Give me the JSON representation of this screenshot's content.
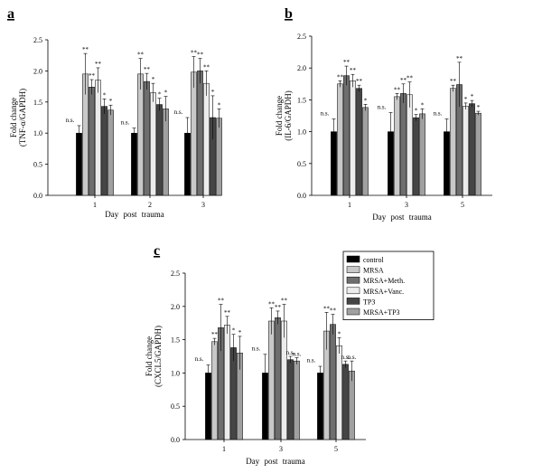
{
  "legend": {
    "series_names": [
      "control",
      "MRSA",
      "MRSA+Meth.",
      "MRSA+Vanc.",
      "TP3",
      "MRSA+TP3"
    ],
    "series_colors": [
      "#000000",
      "#c8c8c8",
      "#6e6e6e",
      "#ececec",
      "#454545",
      "#a0a0a0"
    ]
  },
  "chart_data": [
    {
      "panel": "a",
      "type": "bar",
      "xlabel": "Day post trauma",
      "ylabel": "Fold change (TNF-α/GAPDH)",
      "ylim": [
        0,
        2.5
      ],
      "yticks": [
        "0.0",
        "0.5",
        "1.0",
        "1.5",
        "2.0",
        "2.5"
      ],
      "categories": [
        "1",
        "2",
        "3"
      ],
      "series": [
        {
          "name": "control",
          "values": [
            1.0,
            1.0,
            1.0
          ],
          "errors": [
            0.12,
            0.08,
            0.25
          ]
        },
        {
          "name": "MRSA",
          "values": [
            1.95,
            1.95,
            1.98
          ],
          "errors": [
            0.33,
            0.25,
            0.25
          ]
        },
        {
          "name": "MRSA+Meth.",
          "values": [
            1.74,
            1.83,
            2.0
          ],
          "errors": [
            0.12,
            0.13,
            0.2
          ]
        },
        {
          "name": "MRSA+Vanc.",
          "values": [
            1.85,
            1.65,
            1.8
          ],
          "errors": [
            0.2,
            0.15,
            0.2
          ]
        },
        {
          "name": "TP3",
          "values": [
            1.43,
            1.46,
            1.25
          ],
          "errors": [
            0.12,
            0.1,
            0.35
          ]
        },
        {
          "name": "MRSA+TP3",
          "values": [
            1.37,
            1.39,
            1.24
          ],
          "errors": [
            0.08,
            0.2,
            0.15
          ]
        }
      ],
      "annotations": [
        [
          "n.s.",
          "**",
          "**",
          "**",
          "*",
          "*"
        ],
        [
          "n.s.",
          "**",
          "**",
          "*",
          "*",
          "*"
        ],
        [
          "n.s.",
          "**",
          "**",
          "**",
          "*",
          "*"
        ]
      ]
    },
    {
      "panel": "b",
      "type": "bar",
      "xlabel": "Day post trauma",
      "ylabel": "Fold change (IL-6/GAPDH)",
      "ylim": [
        0,
        2.5
      ],
      "yticks": [
        "0.0",
        "0.5",
        "1.0",
        "1.5",
        "2.0",
        "2.5"
      ],
      "categories": [
        "1",
        "3",
        "5"
      ],
      "series": [
        {
          "name": "control",
          "values": [
            1.0,
            1.0,
            1.0
          ],
          "errors": [
            0.2,
            0.3,
            0.2
          ]
        },
        {
          "name": "MRSA",
          "values": [
            1.75,
            1.55,
            1.68
          ],
          "errors": [
            0.05,
            0.05,
            0.05
          ]
        },
        {
          "name": "MRSA+Meth.",
          "values": [
            1.88,
            1.6,
            1.74
          ],
          "errors": [
            0.15,
            0.15,
            0.35
          ]
        },
        {
          "name": "MRSA+Vanc.",
          "values": [
            1.8,
            1.58,
            1.4
          ],
          "errors": [
            0.1,
            0.2,
            0.05
          ]
        },
        {
          "name": "TP3",
          "values": [
            1.68,
            1.22,
            1.44
          ],
          "errors": [
            0.05,
            0.05,
            0.05
          ]
        },
        {
          "name": "MRSA+TP3",
          "values": [
            1.38,
            1.28,
            1.29
          ],
          "errors": [
            0.05,
            0.08,
            0.03
          ]
        }
      ],
      "annotations": [
        [
          "n.s.",
          "**",
          "**",
          "**",
          "**",
          "*"
        ],
        [
          "n.s.",
          "**",
          "**",
          "**",
          "*",
          "*"
        ],
        [
          "n.s.",
          "**",
          "**",
          "*",
          "*",
          "*"
        ]
      ]
    },
    {
      "panel": "c",
      "type": "bar",
      "xlabel": "Day post trauma",
      "ylabel": "Fold change (CXCL5/GAPDH)",
      "ylim": [
        0,
        2.5
      ],
      "yticks": [
        "0.0",
        "0.5",
        "1.0",
        "1.5",
        "2.0",
        "2.5"
      ],
      "categories": [
        "1",
        "3",
        "5"
      ],
      "series": [
        {
          "name": "control",
          "values": [
            1.0,
            1.0,
            1.0
          ],
          "errors": [
            0.12,
            0.28,
            0.1
          ]
        },
        {
          "name": "MRSA",
          "values": [
            1.47,
            1.78,
            1.63
          ],
          "errors": [
            0.05,
            0.2,
            0.28
          ]
        },
        {
          "name": "MRSA+Meth.",
          "values": [
            1.68,
            1.83,
            1.73
          ],
          "errors": [
            0.35,
            0.1,
            0.15
          ]
        },
        {
          "name": "MRSA+Vanc.",
          "values": [
            1.72,
            1.78,
            1.41
          ],
          "errors": [
            0.13,
            0.25,
            0.12
          ]
        },
        {
          "name": "TP3",
          "values": [
            1.38,
            1.2,
            1.13
          ],
          "errors": [
            0.2,
            0.05,
            0.05
          ]
        },
        {
          "name": "MRSA+TP3",
          "values": [
            1.3,
            1.18,
            1.03
          ],
          "errors": [
            0.25,
            0.05,
            0.15
          ]
        }
      ],
      "annotations": [
        [
          "n.s.",
          "**",
          "**",
          "**",
          "*",
          "*"
        ],
        [
          "n.s.",
          "**",
          "**",
          "**",
          "n.s.",
          "n.s."
        ],
        [
          "n.s.",
          "**",
          "**",
          "*",
          "n.s.",
          "n.s."
        ]
      ]
    }
  ]
}
